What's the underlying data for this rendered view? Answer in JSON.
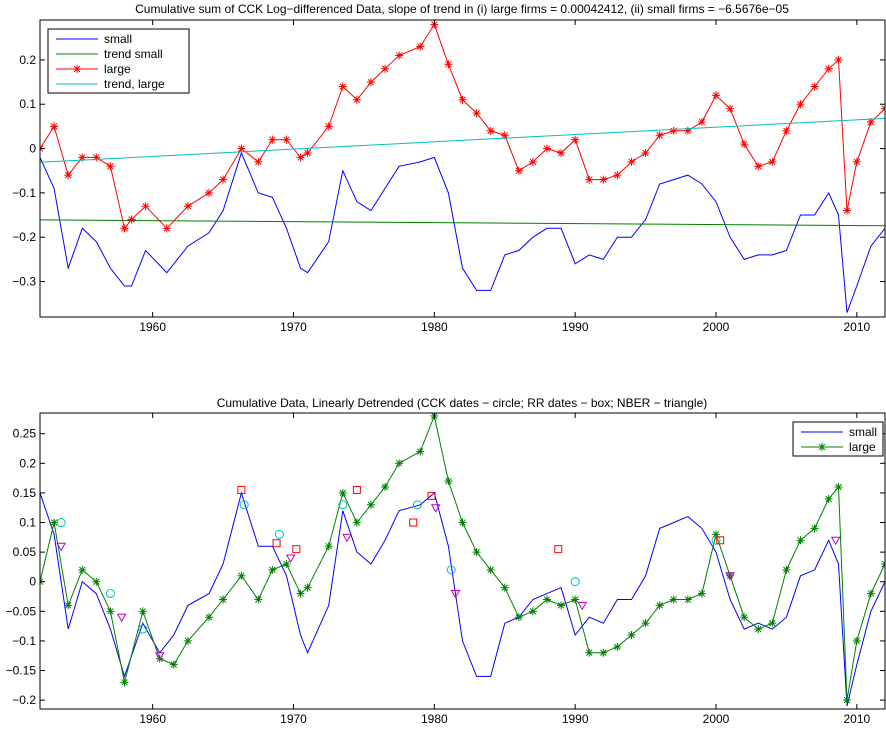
{
  "chart_data": [
    {
      "type": "line",
      "title": "Cumulative sum of CCK Log−differenced Data, slope of trend in (i) large firms = 0.00042412,  (ii) small firms = −6.5676e−05",
      "xlim": [
        1952,
        2012
      ],
      "ylim": [
        -0.38,
        0.29
      ],
      "xticks": [
        1960,
        1970,
        1980,
        1990,
        2000,
        2010
      ],
      "yticks": [
        -0.3,
        -0.2,
        -0.1,
        0,
        0.1,
        0.2
      ],
      "ytick_labels": [
        "−0.3",
        "−0.2",
        "−0.1",
        "0",
        "0.1",
        "0.2"
      ],
      "legend_position": "top-left",
      "series": [
        {
          "name": "small",
          "color": "#0000ff",
          "marker": "none",
          "x": [
            1952.0,
            1953.0,
            1954.0,
            1955.0,
            1956.0,
            1957.0,
            1958.0,
            1958.5,
            1959.5,
            1961.0,
            1962.5,
            1964.0,
            1965.0,
            1966.3,
            1967.5,
            1968.5,
            1969.5,
            1970.5,
            1971.0,
            1972.5,
            1973.5,
            1974.5,
            1975.5,
            1976.5,
            1977.5,
            1979.0,
            1980.0,
            1981.0,
            1982.0,
            1983.0,
            1984.0,
            1985.0,
            1986.0,
            1987.0,
            1988.0,
            1989.0,
            1990.0,
            1991.0,
            1992.0,
            1993.0,
            1994.0,
            1995.0,
            1996.0,
            1997.0,
            1998.0,
            1999.0,
            2000.0,
            2001.0,
            2002.0,
            2003.0,
            2004.0,
            2005.0,
            2006.0,
            2007.0,
            2008.0,
            2008.7,
            2009.3,
            2010.0,
            2011.0,
            2012.0
          ],
          "values": [
            -0.02,
            -0.09,
            -0.27,
            -0.18,
            -0.21,
            -0.27,
            -0.31,
            -0.31,
            -0.23,
            -0.28,
            -0.22,
            -0.19,
            -0.14,
            -0.01,
            -0.1,
            -0.11,
            -0.18,
            -0.27,
            -0.28,
            -0.21,
            -0.05,
            -0.12,
            -0.14,
            -0.09,
            -0.04,
            -0.03,
            -0.02,
            -0.1,
            -0.27,
            -0.32,
            -0.32,
            -0.24,
            -0.23,
            -0.2,
            -0.18,
            -0.18,
            -0.26,
            -0.24,
            -0.25,
            -0.2,
            -0.2,
            -0.16,
            -0.08,
            -0.07,
            -0.06,
            -0.08,
            -0.12,
            -0.2,
            -0.25,
            -0.24,
            -0.24,
            -0.23,
            -0.15,
            -0.15,
            -0.1,
            -0.15,
            -0.37,
            -0.31,
            -0.22,
            -0.18
          ]
        },
        {
          "name": "trend small",
          "color": "#008000",
          "marker": "none",
          "x": [
            1952,
            2012
          ],
          "values": [
            -0.161,
            -0.174
          ]
        },
        {
          "name": "large",
          "color": "#ff0000",
          "marker": "asterisk",
          "x": [
            1952.0,
            1953.0,
            1954.0,
            1955.0,
            1956.0,
            1957.0,
            1958.0,
            1958.5,
            1959.5,
            1961.0,
            1962.5,
            1964.0,
            1965.0,
            1966.3,
            1967.5,
            1968.5,
            1969.5,
            1970.5,
            1971.0,
            1972.5,
            1973.5,
            1974.5,
            1975.5,
            1976.5,
            1977.5,
            1979.0,
            1980.0,
            1981.0,
            1982.0,
            1983.0,
            1984.0,
            1985.0,
            1986.0,
            1987.0,
            1988.0,
            1989.0,
            1990.0,
            1991.0,
            1992.0,
            1993.0,
            1994.0,
            1995.0,
            1996.0,
            1997.0,
            1998.0,
            1999.0,
            2000.0,
            2001.0,
            2002.0,
            2003.0,
            2004.0,
            2005.0,
            2006.0,
            2007.0,
            2008.0,
            2008.7,
            2009.3,
            2010.0,
            2011.0,
            2012.0
          ],
          "values": [
            0.0,
            0.05,
            -0.06,
            -0.02,
            -0.02,
            -0.04,
            -0.18,
            -0.16,
            -0.13,
            -0.18,
            -0.13,
            -0.1,
            -0.07,
            0.0,
            -0.03,
            0.02,
            0.02,
            -0.02,
            -0.01,
            0.05,
            0.14,
            0.11,
            0.15,
            0.18,
            0.21,
            0.23,
            0.28,
            0.19,
            0.11,
            0.08,
            0.04,
            0.03,
            -0.05,
            -0.03,
            0.0,
            -0.01,
            0.02,
            -0.07,
            -0.07,
            -0.06,
            -0.03,
            -0.01,
            0.03,
            0.04,
            0.04,
            0.06,
            0.12,
            0.09,
            0.01,
            -0.04,
            -0.03,
            0.04,
            0.1,
            0.14,
            0.18,
            0.2,
            -0.14,
            -0.03,
            0.06,
            0.09
          ]
        },
        {
          "name": "trend, large",
          "color": "#00bfbf",
          "marker": "none",
          "x": [
            1952,
            2012
          ],
          "values": [
            -0.031,
            0.068
          ]
        }
      ]
    },
    {
      "type": "line",
      "title": "Cumulative Data, Linearly Detrended (CCK dates − circle; RR dates − box; NBER − triangle)",
      "xlim": [
        1952,
        2012
      ],
      "ylim": [
        -0.215,
        0.285
      ],
      "xticks": [
        1960,
        1970,
        1980,
        1990,
        2000,
        2010
      ],
      "yticks": [
        -0.2,
        -0.15,
        -0.1,
        -0.05,
        0,
        0.05,
        0.1,
        0.15,
        0.2,
        0.25
      ],
      "ytick_labels": [
        "−0.2",
        "−0.15",
        "−0.1",
        "−0.05",
        "0",
        "0.05",
        "0.1",
        "0.15",
        "0.2",
        "0.25"
      ],
      "legend_position": "top-right",
      "series": [
        {
          "name": "small",
          "color": "#0000ff",
          "marker": "none",
          "x": [
            1952.0,
            1953.0,
            1954.0,
            1955.0,
            1956.0,
            1957.0,
            1958.0,
            1959.3,
            1960.5,
            1961.5,
            1962.5,
            1964.0,
            1965.0,
            1966.3,
            1967.5,
            1968.5,
            1969.5,
            1970.5,
            1971.0,
            1972.5,
            1973.5,
            1974.5,
            1975.5,
            1976.5,
            1977.5,
            1979.0,
            1980.0,
            1981.0,
            1982.0,
            1983.0,
            1984.0,
            1985.0,
            1986.0,
            1987.0,
            1988.0,
            1989.0,
            1990.0,
            1991.0,
            1992.0,
            1993.0,
            1994.0,
            1995.0,
            1996.0,
            1997.0,
            1998.0,
            1999.0,
            2000.0,
            2001.0,
            2002.0,
            2003.0,
            2004.0,
            2005.0,
            2006.0,
            2007.0,
            2008.0,
            2008.7,
            2009.3,
            2010.0,
            2011.0,
            2012.0
          ],
          "values": [
            0.15,
            0.08,
            -0.08,
            0.0,
            -0.02,
            -0.08,
            -0.16,
            -0.07,
            -0.12,
            -0.09,
            -0.04,
            -0.02,
            0.03,
            0.15,
            0.06,
            0.06,
            0.01,
            -0.09,
            -0.12,
            -0.04,
            0.12,
            0.05,
            0.03,
            0.07,
            0.12,
            0.13,
            0.15,
            0.06,
            -0.1,
            -0.16,
            -0.16,
            -0.07,
            -0.06,
            -0.03,
            -0.02,
            -0.01,
            -0.09,
            -0.06,
            -0.07,
            -0.03,
            -0.03,
            0.01,
            0.09,
            0.1,
            0.11,
            0.09,
            0.05,
            -0.03,
            -0.08,
            -0.07,
            -0.08,
            -0.06,
            0.01,
            0.02,
            0.07,
            0.03,
            -0.21,
            -0.14,
            -0.05,
            0.0
          ]
        },
        {
          "name": "large",
          "color": "#008000",
          "marker": "asterisk",
          "x": [
            1952.0,
            1953.0,
            1954.0,
            1955.0,
            1956.0,
            1957.0,
            1958.0,
            1959.3,
            1960.5,
            1961.5,
            1962.5,
            1964.0,
            1965.0,
            1966.3,
            1967.5,
            1968.5,
            1969.5,
            1970.5,
            1971.0,
            1972.5,
            1973.5,
            1974.5,
            1975.5,
            1976.5,
            1977.5,
            1979.0,
            1980.0,
            1981.0,
            1982.0,
            1983.0,
            1984.0,
            1985.0,
            1986.0,
            1987.0,
            1988.0,
            1989.0,
            1990.0,
            1991.0,
            1992.0,
            1993.0,
            1994.0,
            1995.0,
            1996.0,
            1997.0,
            1998.0,
            1999.0,
            2000.0,
            2001.0,
            2002.0,
            2003.0,
            2004.0,
            2005.0,
            2006.0,
            2007.0,
            2008.0,
            2008.7,
            2009.3,
            2010.0,
            2011.0,
            2012.0
          ],
          "values": [
            0.0,
            0.1,
            -0.04,
            0.02,
            0.0,
            -0.05,
            -0.17,
            -0.05,
            -0.13,
            -0.14,
            -0.1,
            -0.06,
            -0.03,
            0.01,
            -0.03,
            0.02,
            0.03,
            -0.02,
            -0.01,
            0.06,
            0.15,
            0.1,
            0.13,
            0.16,
            0.2,
            0.22,
            0.28,
            0.17,
            0.1,
            0.05,
            0.02,
            -0.01,
            -0.06,
            -0.05,
            -0.03,
            -0.04,
            -0.03,
            -0.12,
            -0.12,
            -0.11,
            -0.09,
            -0.07,
            -0.04,
            -0.03,
            -0.03,
            -0.02,
            0.08,
            0.01,
            -0.06,
            -0.08,
            -0.07,
            0.02,
            0.07,
            0.09,
            0.14,
            0.16,
            -0.2,
            -0.1,
            -0.02,
            0.03
          ]
        }
      ],
      "markers": {
        "cck_circle": {
          "color": "#00bfbf",
          "x": [
            1953.5,
            1957.0,
            1959.3,
            1966.5,
            1969.0,
            1973.5,
            1978.8,
            1981.2,
            1990.0,
            2000.0
          ],
          "values": [
            0.1,
            -0.02,
            -0.08,
            0.13,
            0.08,
            0.13,
            0.13,
            0.02,
            0.0,
            0.07
          ]
        },
        "rr_box": {
          "color": "#ff0000",
          "x": [
            1966.3,
            1968.8,
            1970.2,
            1974.5,
            1978.5,
            1979.8,
            1988.8,
            2000.3
          ],
          "values": [
            0.155,
            0.065,
            0.055,
            0.155,
            0.1,
            0.145,
            0.055,
            0.07
          ]
        },
        "nber_triangle": {
          "color": "#bf00bf",
          "x": [
            1953.5,
            1957.8,
            1960.5,
            1969.8,
            1973.8,
            1980.1,
            1981.5,
            1990.5,
            2001.0,
            2008.5
          ],
          "values": [
            0.06,
            -0.06,
            -0.125,
            0.04,
            0.075,
            0.125,
            -0.02,
            -0.04,
            0.01,
            0.07
          ]
        }
      }
    }
  ]
}
